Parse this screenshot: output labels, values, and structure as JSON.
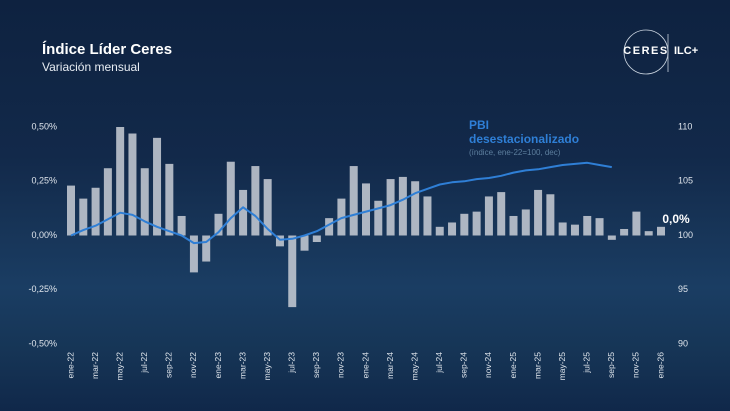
{
  "title": "Índice Líder Ceres",
  "subtitle": "Variación mensual",
  "logo": {
    "brand": "CERES",
    "product": "ILC+"
  },
  "chart_data": {
    "type": "bar",
    "categories": [
      "ene-22",
      null,
      "mar-22",
      null,
      "may-22",
      null,
      "jul-22",
      null,
      "sep-22",
      null,
      "nov-22",
      null,
      "ene-23",
      null,
      "mar-23",
      null,
      "may-23",
      null,
      "jul-23",
      null,
      "sep-23",
      null,
      "nov-23",
      null,
      "ene-24",
      null,
      "mar-24",
      null,
      "may-24",
      null,
      "jul-24",
      null,
      "sep-24",
      null,
      "nov-24",
      null,
      "ene-25",
      null,
      "mar-25",
      null,
      "may-25",
      null,
      "jul-25",
      null,
      "sep-25",
      null,
      "nov-25",
      null,
      "ene-26"
    ],
    "series": [
      {
        "color": "#c9ced6",
        "values": [
          0.23,
          0.17,
          0.22,
          0.31,
          0.5,
          0.47,
          0.31,
          0.45,
          0.33,
          0.09,
          -0.17,
          -0.12,
          0.1,
          0.34,
          0.21,
          0.32,
          0.26,
          -0.05,
          -0.33,
          -0.07,
          -0.03,
          0.08,
          0.17,
          0.32,
          0.24,
          0.16,
          0.26,
          0.27,
          0.25,
          0.18,
          0.04,
          0.06,
          0.1,
          0.11,
          0.18,
          0.2,
          0.09,
          0.12,
          0.21,
          0.19,
          0.06,
          0.05,
          0.09,
          0.08,
          -0.02,
          0.03,
          0.11,
          0.02,
          0.04
        ]
      },
      {
        "name": "PBI desestacionalizado",
        "color": "#2f7fd6",
        "axis": "y2",
        "values": [
          100,
          100.5,
          100.9,
          101.5,
          102.1,
          101.9,
          101.3,
          100.8,
          100.4,
          100.0,
          99.3,
          99.4,
          100.3,
          101.6,
          102.6,
          101.8,
          100.6,
          99.6,
          99.7,
          100.0,
          100.4,
          101.0,
          101.6,
          101.9,
          102.2,
          102.5,
          102.8,
          103.3,
          103.9,
          104.3,
          104.7,
          104.9,
          105.0,
          105.2,
          105.3,
          105.5,
          105.8,
          106.0,
          106.1,
          106.3,
          106.5,
          106.6,
          106.7,
          106.5,
          106.3,
          null,
          null,
          null,
          null
        ]
      }
    ],
    "series_note": "(índice, ene-22=100, dec)",
    "annotation": "0,0%",
    "ylim": [
      -0.5,
      0.5
    ],
    "yticks": [
      {
        "value": -0.5,
        "label": "-0,50%"
      },
      {
        "value": -0.25,
        "label": "-0,25%"
      },
      {
        "value": 0,
        "label": "0,00%"
      },
      {
        "value": 0.25,
        "label": "0,25%"
      },
      {
        "value": 0.5,
        "label": "0,50%"
      }
    ],
    "y2lim": [
      90,
      110
    ],
    "y2ticks": [
      90,
      95,
      100,
      105,
      110
    ],
    "grid": false
  }
}
